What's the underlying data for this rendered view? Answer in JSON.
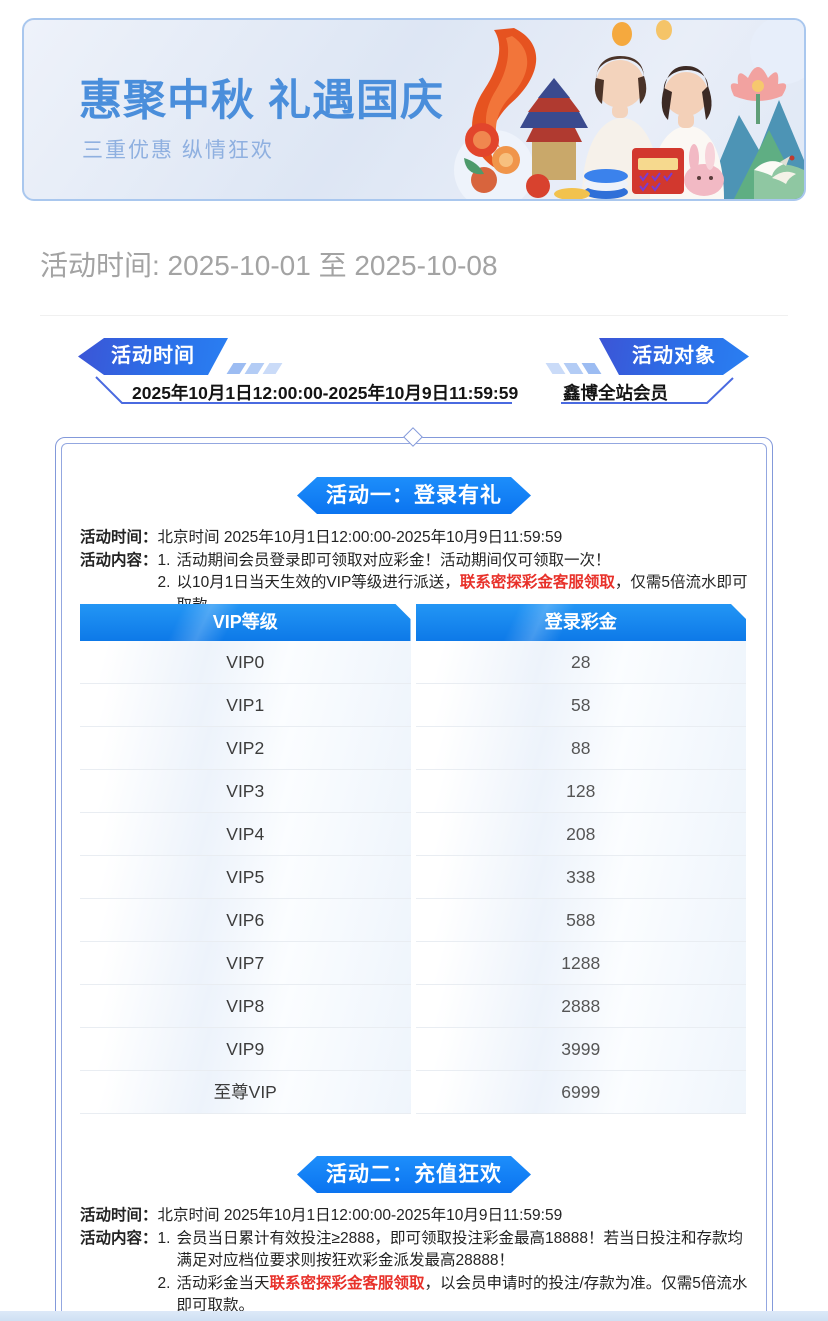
{
  "banner": {
    "title": "惠聚中秋 礼遇国庆",
    "subtitle": "三重优惠 纵情狂欢"
  },
  "period_line": "活动时间: 2025-10-01 至 2025-10-08",
  "ribbons": {
    "left": {
      "label": "活动时间",
      "value": "2025年10月1日12:00:00-2025年10月9日11:59:59"
    },
    "right": {
      "label": "活动对象",
      "value": "鑫博全站会员"
    }
  },
  "activity1": {
    "badge": "活动一：登录有礼",
    "time_label": "活动时间：",
    "time_value": "北京时间 2025年10月1日12:00:00-2025年10月9日11:59:59",
    "content_label": "活动内容：",
    "items": [
      {
        "num": "1.",
        "pre": "活动期间会员登录即可领取对应彩金！活动期间仅可领取一次！",
        "red": "",
        "post": ""
      },
      {
        "num": "2.",
        "pre": "以10月1日当天生效的VIP等级进行派送，",
        "red": "联系密探彩金客服领取",
        "post": "，仅需5倍流水即可取款。"
      }
    ],
    "table": {
      "headers": [
        "VIP等级",
        "登录彩金"
      ],
      "rows": [
        [
          "VIP0",
          "28"
        ],
        [
          "VIP1",
          "58"
        ],
        [
          "VIP2",
          "88"
        ],
        [
          "VIP3",
          "128"
        ],
        [
          "VIP4",
          "208"
        ],
        [
          "VIP5",
          "338"
        ],
        [
          "VIP6",
          "588"
        ],
        [
          "VIP7",
          "1288"
        ],
        [
          "VIP8",
          "2888"
        ],
        [
          "VIP9",
          "3999"
        ],
        [
          "至尊VIP",
          "6999"
        ]
      ]
    }
  },
  "activity2": {
    "badge": "活动二：充值狂欢",
    "time_label": "活动时间：",
    "time_value": "北京时间 2025年10月1日12:00:00-2025年10月9日11:59:59",
    "content_label": "活动内容：",
    "items": [
      {
        "num": "1.",
        "pre": "会员当日累计有效投注≥2888，即可领取投注彩金最高18888！若当日投注和存款均满足对应档位要求则按狂欢彩金派发最高28888！",
        "red": "",
        "post": ""
      },
      {
        "num": "2.",
        "pre": "活动彩金当天",
        "red": "联系密探彩金客服领取",
        "post": "，以会员申请时的投注/存款为准。仅需5倍流水即可取款。"
      }
    ]
  },
  "colors": {
    "title_blue": "#4a8edb",
    "ribbon_blue": "#2b6fe8",
    "badge_blue": "#0b74f0",
    "table_header_blue": "#0d79e8",
    "warning_red": "#e8312a",
    "banner_border": "#a9c7ee",
    "frame_blue": "#8399da"
  },
  "icons": {
    "diamond_divider": "diamond-divider-icon",
    "banner_art": [
      "ribbon-swirl-icon",
      "temple-icon",
      "peony-flower-icon",
      "lotus-icon",
      "mountain-icon",
      "lantern-icon",
      "woman-figure",
      "rabbit-icon",
      "poker-chips-icon",
      "calendar-icon",
      "crane-icon"
    ]
  }
}
